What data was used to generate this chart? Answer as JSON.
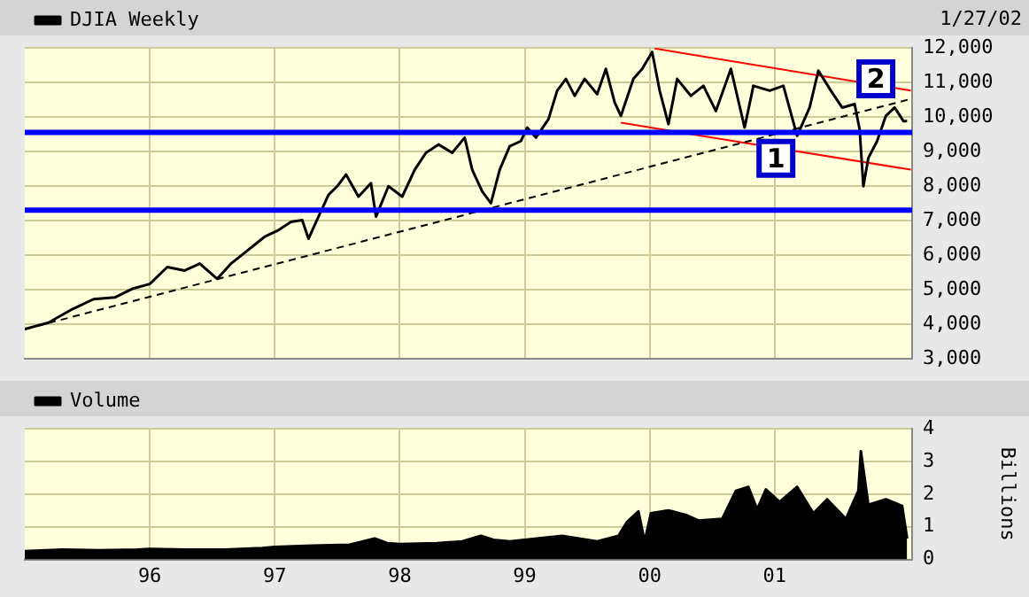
{
  "chart_data": [
    {
      "type": "line",
      "legend": "top left",
      "grid": true,
      "tick_labels": "y",
      "annotations": [
        "1/27/02",
        {
          "text": "1",
          "x": 2001.01,
          "y": 8800
        },
        {
          "text": "2",
          "x": 2001.81,
          "y": 11100
        }
      ],
      "xlim": [
        1995,
        2002.1
      ],
      "xticks": [
        {
          "value": 1996,
          "label": null
        },
        {
          "value": 1997,
          "label": null
        },
        {
          "value": 1998,
          "label": null
        },
        {
          "value": 1999,
          "label": null
        },
        {
          "value": 2000,
          "label": null
        },
        {
          "value": 2001,
          "label": null
        }
      ],
      "ylim": [
        3000,
        12000
      ],
      "yticks": [
        {
          "value": 3000,
          "label": "3,000"
        },
        {
          "value": 4000,
          "label": "4,000"
        },
        {
          "value": 5000,
          "label": "5,000"
        },
        {
          "value": 6000,
          "label": "6,000"
        },
        {
          "value": 7000,
          "label": "7,000"
        },
        {
          "value": 8000,
          "label": "8,000"
        },
        {
          "value": 9000,
          "label": "9,000"
        },
        {
          "value": 10000,
          "label": "10,000"
        },
        {
          "value": 11000,
          "label": "11,000"
        },
        {
          "value": 12000,
          "label": "12,000"
        }
      ],
      "ref_lines": [
        {
          "axis": "y",
          "value": 9550,
          "label": null,
          "color": "#0000ff"
        },
        {
          "axis": "y",
          "value": 7300,
          "label": null,
          "color": "#0000ff"
        }
      ],
      "series": [
        {
          "name": "DJIA Weekly",
          "color": "#000000",
          "x": [
            1995.0,
            1995.19,
            1995.38,
            1995.55,
            1995.72,
            1995.86,
            1996.0,
            1996.14,
            1996.28,
            1996.4,
            1996.54,
            1996.65,
            1996.75,
            1996.92,
            1997.03,
            1997.13,
            1997.22,
            1997.27,
            1997.35,
            1997.43,
            1997.5,
            1997.57,
            1997.67,
            1997.77,
            1997.81,
            1997.91,
            1998.02,
            1998.12,
            1998.21,
            1998.31,
            1998.42,
            1998.52,
            1998.58,
            1998.66,
            1998.73,
            1998.8,
            1998.88,
            1998.97,
            1999.02,
            1999.09,
            1999.19,
            1999.26,
            1999.33,
            1999.4,
            1999.48,
            1999.58,
            1999.65,
            1999.72,
            1999.77,
            1999.87,
            1999.94,
            2000.02,
            2000.08,
            2000.15,
            2000.22,
            2000.33,
            2000.43,
            2000.53,
            2000.65,
            2000.76,
            2000.83,
            2000.96,
            2001.07,
            2001.18,
            2001.28,
            2001.35,
            2001.45,
            2001.54,
            2001.64,
            2001.68,
            2001.71,
            2001.75,
            2001.82,
            2001.89,
            2001.96,
            2002.03,
            2002.06
          ],
          "values": [
            3850,
            4040,
            4430,
            4720,
            4770,
            5020,
            5160,
            5650,
            5550,
            5750,
            5310,
            5750,
            6040,
            6530,
            6720,
            6960,
            7010,
            6470,
            7110,
            7740,
            7990,
            8330,
            7690,
            8080,
            7110,
            7990,
            7690,
            8470,
            8960,
            9200,
            8960,
            9400,
            8470,
            7840,
            7500,
            8470,
            9150,
            9300,
            9690,
            9400,
            9930,
            10760,
            11100,
            10610,
            11100,
            10660,
            11390,
            10420,
            10030,
            11100,
            11390,
            11880,
            10760,
            9790,
            11100,
            10610,
            10900,
            10170,
            11390,
            9690,
            10900,
            10760,
            10900,
            9450,
            10270,
            11340,
            10760,
            10270,
            10370,
            9640,
            7990,
            8810,
            9300,
            10030,
            10270,
            9880,
            9880
          ]
        },
        {
          "color": "#000000",
          "line_style": "dashed",
          "x": [
            1995.0,
            2002.09
          ],
          "values": [
            3850,
            10520
          ]
        },
        {
          "color": "#ff0000",
          "x": [
            2000.04,
            2002.09
          ],
          "values": [
            11980,
            10760
          ]
        },
        {
          "color": "#ff0000",
          "x": [
            1999.77,
            2002.09
          ],
          "values": [
            9830,
            8470
          ]
        }
      ]
    },
    {
      "type": "area",
      "legend": "top left",
      "grid": true,
      "ylabel": "Billions",
      "xlim": [
        1995,
        2002.1
      ],
      "xticks": [
        {
          "value": 1996,
          "label": "96"
        },
        {
          "value": 1997,
          "label": "97"
        },
        {
          "value": 1998,
          "label": "98"
        },
        {
          "value": 1999,
          "label": "99"
        },
        {
          "value": 2000,
          "label": "00"
        },
        {
          "value": 2001,
          "label": "01"
        }
      ],
      "ylim": [
        0,
        4
      ],
      "yticks": [
        0,
        1,
        2,
        3,
        4
      ],
      "series": [
        {
          "name": "Volume",
          "color": "#000000",
          "x": [
            1995.0,
            1995.3,
            1995.6,
            1995.9,
            1996.0,
            1996.3,
            1996.6,
            1996.9,
            1997.0,
            1997.3,
            1997.6,
            1997.8,
            1997.9,
            1998.0,
            1998.3,
            1998.5,
            1998.65,
            1998.75,
            1998.88,
            1999.3,
            1999.58,
            1999.75,
            1999.82,
            1999.91,
            1999.96,
            2000.01,
            2000.15,
            2000.29,
            2000.39,
            2000.58,
            2000.69,
            2000.79,
            2000.86,
            2000.93,
            2001.04,
            2001.18,
            2001.31,
            2001.42,
            2001.57,
            2001.67,
            2001.69,
            2001.75,
            2001.89,
            2002.02,
            2002.06
          ],
          "values": [
            0.25,
            0.3,
            0.28,
            0.3,
            0.32,
            0.3,
            0.3,
            0.35,
            0.38,
            0.42,
            0.45,
            0.64,
            0.5,
            0.47,
            0.5,
            0.55,
            0.72,
            0.6,
            0.55,
            0.72,
            0.55,
            0.72,
            1.15,
            1.47,
            0.55,
            1.41,
            1.5,
            1.36,
            1.19,
            1.24,
            2.1,
            2.22,
            1.53,
            2.14,
            1.76,
            2.22,
            1.41,
            1.84,
            1.24,
            2.1,
            3.31,
            1.67,
            1.84,
            1.64,
            0.64
          ]
        }
      ]
    }
  ]
}
